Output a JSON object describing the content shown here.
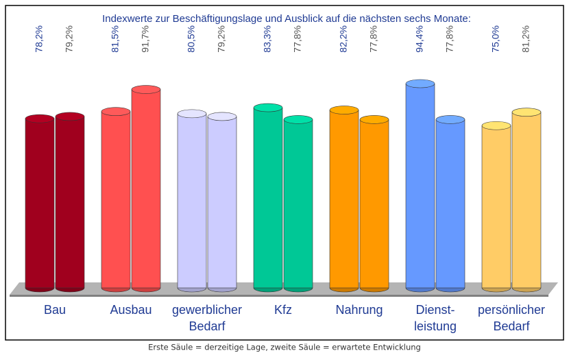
{
  "chart_data": {
    "type": "cylinder-bar",
    "title": "Indexwerte zur Beschäftigungslage und Ausblick auf die nächsten sechs Monate:",
    "note": "Erste Säule = derzeitige Lage, zweite Säule = erwartete Entwicklung",
    "categories": [
      [
        "Bau"
      ],
      [
        "Ausbau"
      ],
      [
        "gewerblicher",
        "Bedarf"
      ],
      [
        "Kfz"
      ],
      [
        "Nahrung"
      ],
      [
        "Dienst-",
        "leistung"
      ],
      [
        "persönlicher",
        "Bedarf"
      ]
    ],
    "colors": [
      "#a0001e",
      "#ff5050",
      "#ccccff",
      "#00c896",
      "#ff9900",
      "#6699ff",
      "#ffcc66"
    ],
    "series": [
      {
        "values": [
          78.2,
          81.5,
          80.5,
          83.3,
          82.2,
          94.4,
          75.0
        ],
        "value_labels": [
          "78,2%",
          "81,5%",
          "80,5%",
          "83,3%",
          "82,2%",
          "94,4%",
          "75,0%"
        ],
        "label_color": "#1f3a93"
      },
      {
        "values": [
          79.2,
          91.7,
          79.2,
          77.8,
          77.8,
          77.8,
          81.2
        ],
        "value_labels": [
          "79,2%",
          "91,7%",
          "79,2%",
          "77,8%",
          "77,8%",
          "77,8%",
          "81,2%"
        ],
        "label_color": "#555555"
      }
    ]
  }
}
